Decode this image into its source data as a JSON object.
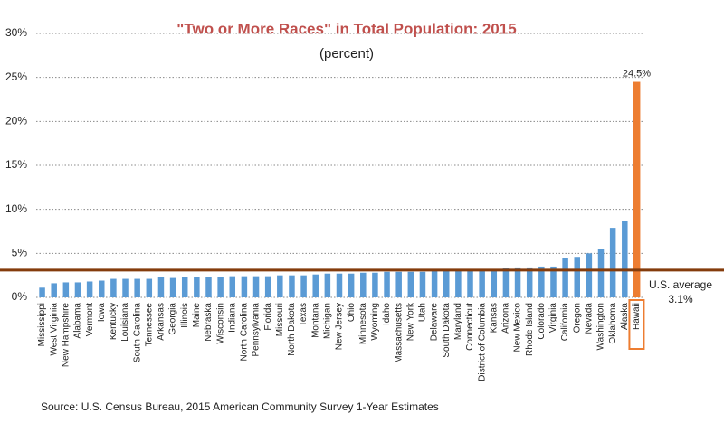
{
  "chart_data": {
    "type": "bar",
    "title": "\"Two or More Races\" in Total Population: 2015",
    "subtitle": "(percent)",
    "source": "Source: U.S. Census Bureau, 2015 American Community Survey 1-Year Estimates",
    "categories": [
      "Mississippi",
      "West Virginia",
      "New Hampshire",
      "Alabama",
      "Vermont",
      "Iowa",
      "Kentucky",
      "Louisiana",
      "South Carolina",
      "Tennessee",
      "Arkansas",
      "Georgia",
      "Illinois",
      "Maine",
      "Nebraska",
      "Wisconsin",
      "Indiana",
      "North Carolina",
      "Pennsylvania",
      "Florida",
      "Missouri",
      "North Dakota",
      "Texas",
      "Montana",
      "Michigan",
      "New Jersey",
      "Ohio",
      "Minnesota",
      "Wyoming",
      "Idaho",
      "Massachusetts",
      "New York",
      "Utah",
      "Delaware",
      "South Dakota",
      "Maryland",
      "Connecticut",
      "District of Columbia",
      "Kansas",
      "Arizona",
      "New Mexico",
      "Rhode Island",
      "Colorado",
      "Virginia",
      "California",
      "Oregon",
      "Nevada",
      "Washington",
      "Oklahoma",
      "Alaska",
      "Hawaii"
    ],
    "values": [
      1.1,
      1.6,
      1.7,
      1.7,
      1.8,
      1.9,
      2.1,
      2.1,
      2.1,
      2.1,
      2.3,
      2.2,
      2.3,
      2.3,
      2.3,
      2.3,
      2.4,
      2.4,
      2.4,
      2.4,
      2.5,
      2.5,
      2.5,
      2.6,
      2.7,
      2.7,
      2.7,
      2.8,
      2.8,
      2.9,
      2.9,
      2.9,
      2.9,
      3.0,
      3.0,
      3.0,
      3.1,
      3.2,
      3.2,
      3.3,
      3.4,
      3.4,
      3.5,
      3.5,
      4.5,
      4.6,
      5.0,
      5.5,
      7.9,
      8.7,
      24.5
    ],
    "value_labels": [
      null,
      null,
      null,
      null,
      null,
      null,
      null,
      null,
      null,
      null,
      null,
      null,
      null,
      null,
      null,
      null,
      null,
      null,
      null,
      null,
      null,
      null,
      null,
      null,
      null,
      null,
      null,
      null,
      null,
      null,
      null,
      null,
      null,
      null,
      null,
      null,
      null,
      null,
      null,
      null,
      null,
      null,
      null,
      null,
      null,
      null,
      null,
      null,
      null,
      null,
      "24.5%"
    ],
    "color": "#5b9bd5",
    "highlight_color": "#ed7d31",
    "ylim": [
      0,
      30
    ],
    "yticks": [
      {
        "value": 0,
        "label": "0%"
      },
      {
        "value": 5,
        "label": "5%"
      },
      {
        "value": 10,
        "label": "10%"
      },
      {
        "value": 15,
        "label": "15%"
      },
      {
        "value": 20,
        "label": "20%"
      },
      {
        "value": 25,
        "label": "25%"
      },
      {
        "value": 30,
        "label": "30%"
      }
    ],
    "grid": true,
    "reference_line": {
      "value": 3.1,
      "label": "U.S. average",
      "value_label": "3.1%",
      "color": "#843c0c"
    }
  }
}
